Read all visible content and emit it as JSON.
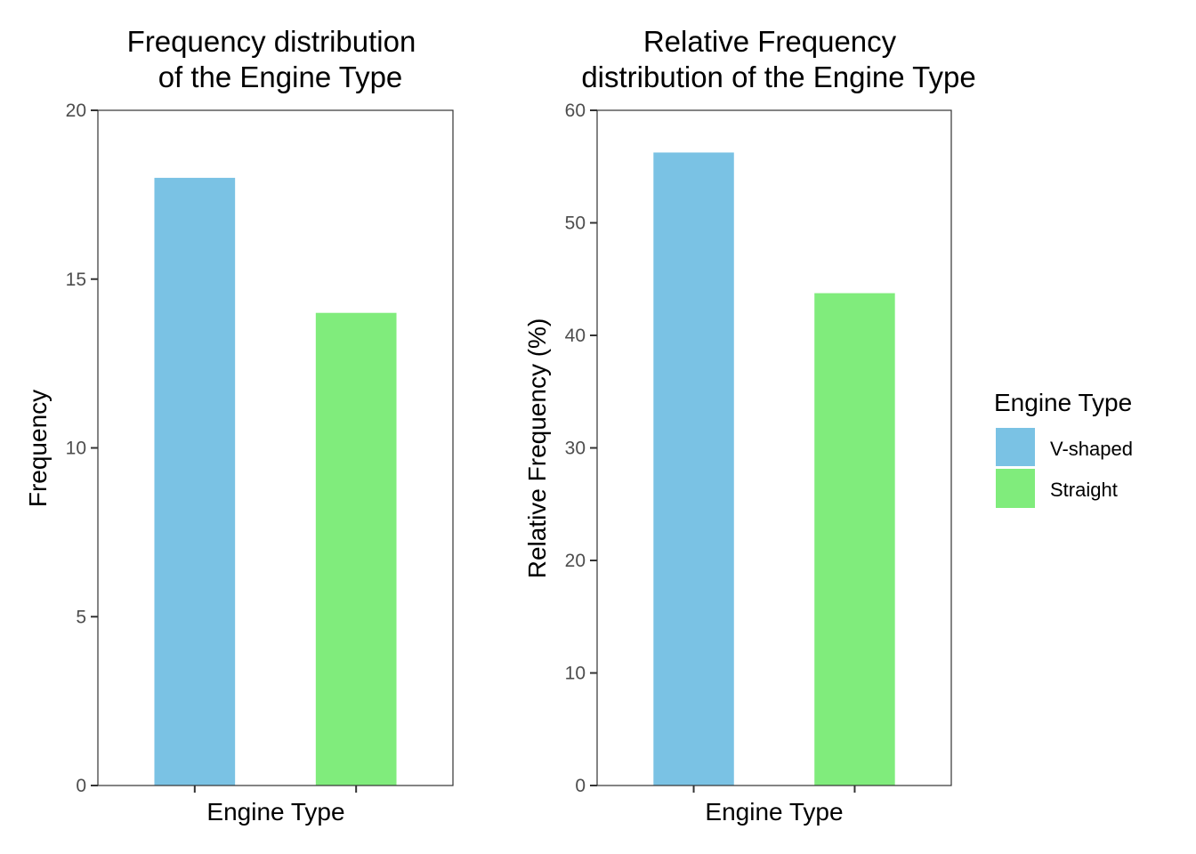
{
  "chart_data": [
    {
      "type": "bar",
      "title_lines": [
        "Frequency distribution",
        "of the Engine Type"
      ],
      "xlabel": "Engine Type",
      "ylabel": "Frequency",
      "ylim": [
        0,
        20
      ],
      "yticks": [
        0,
        5,
        10,
        15,
        20
      ],
      "ytick_labels": [
        "0",
        "5",
        "10",
        "15",
        "20"
      ],
      "categories": [
        "V-shaped",
        "Straight"
      ],
      "values": [
        18,
        14
      ],
      "grid": false
    },
    {
      "type": "bar",
      "title_lines": [
        "Relative Frequency",
        "distribution of the Engine Type"
      ],
      "xlabel": "Engine Type",
      "ylabel": "Relative Frequency (%)",
      "ylim": [
        0,
        60
      ],
      "yticks": [
        0,
        10,
        20,
        30,
        40,
        50,
        60
      ],
      "ytick_labels": [
        "0",
        "10",
        "20",
        "30",
        "40",
        "50",
        "60"
      ],
      "categories": [
        "V-shaped",
        "Straight"
      ],
      "values": [
        56.25,
        43.75
      ],
      "grid": false
    }
  ],
  "legend": {
    "title": "Engine Type",
    "position": "right",
    "items": [
      {
        "label": "V-shaped",
        "color": "#7AC2E4"
      },
      {
        "label": "Straight",
        "color": "#80EC7C"
      }
    ]
  }
}
